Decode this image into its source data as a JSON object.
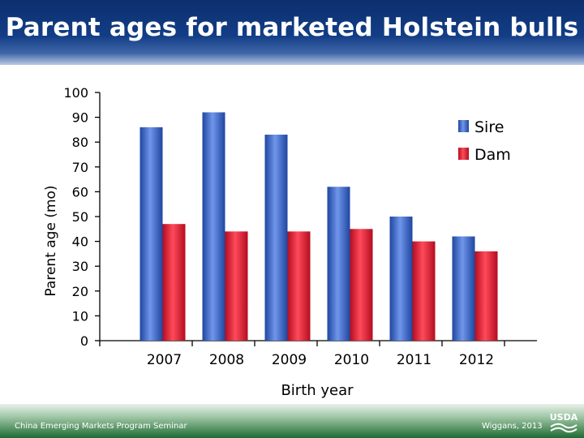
{
  "slide": {
    "title": "Parent ages for marketed Holstein bulls"
  },
  "footer": {
    "left_text": "China Emerging Markets Program Seminar",
    "right_text": "Wiggans, 2013",
    "logo_text": "USDA"
  },
  "colors": {
    "sire": "#2e5fc2",
    "dam": "#e0162d",
    "title_band": "#123d86",
    "footer_band": "#1f6b33"
  },
  "chart_data": {
    "type": "bar",
    "title": "",
    "xlabel": "Birth year",
    "ylabel": "Parent age (mo)",
    "ylim": [
      0,
      100
    ],
    "yticks": [
      0,
      10,
      20,
      30,
      40,
      50,
      60,
      70,
      80,
      90,
      100
    ],
    "categories": [
      "2007",
      "2008",
      "2009",
      "2010",
      "2011",
      "2012"
    ],
    "series": [
      {
        "name": "Sire",
        "values": [
          86,
          92,
          83,
          62,
          50,
          42
        ]
      },
      {
        "name": "Dam",
        "values": [
          47,
          44,
          44,
          45,
          40,
          36
        ]
      }
    ],
    "legend": "top-right",
    "grid": false
  }
}
